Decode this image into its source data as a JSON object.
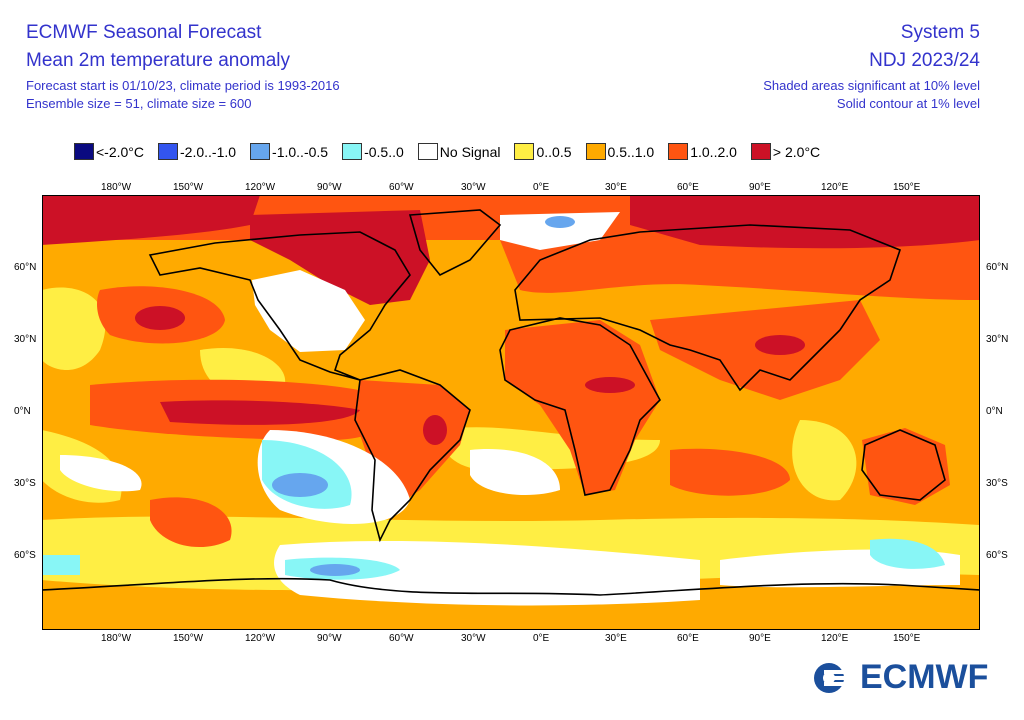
{
  "header": {
    "title": "ECMWF Seasonal Forecast",
    "subtitle": "Mean 2m temperature anomaly",
    "info1": "Forecast start is 01/10/23, climate period is 1993-2016",
    "info2": "Ensemble size = 51, climate size = 600",
    "system": "System 5",
    "period": "NDJ 2023/24",
    "sig1": "Shaded areas significant at 10% level",
    "sig2": "Solid contour at 1% level"
  },
  "legend": [
    {
      "label": "<-2.0°C",
      "color": "#0a0a80"
    },
    {
      "label": "-2.0..-1.0",
      "color": "#3355ee"
    },
    {
      "label": "-1.0..-0.5",
      "color": "#66a6ee"
    },
    {
      "label": "-0.5..0",
      "color": "#88f6f6"
    },
    {
      "label": "No Signal",
      "color": "#ffffff"
    },
    {
      "label": "0..0.5",
      "color": "#ffee44"
    },
    {
      "label": "0.5..1.0",
      "color": "#ffaa00"
    },
    {
      "label": "1.0..2.0",
      "color": "#ff5511"
    },
    {
      "label": "> 2.0°C",
      "color": "#cc1126"
    }
  ],
  "lon_labels": [
    "180°W",
    "150°W",
    "120°W",
    "90°W",
    "60°W",
    "30°W",
    "0°E",
    "30°E",
    "60°E",
    "90°E",
    "120°E",
    "150°E"
  ],
  "lat_labels": [
    "60°N",
    "30°N",
    "0°N",
    "30°S",
    "60°S"
  ],
  "logo": "ECMWF"
}
